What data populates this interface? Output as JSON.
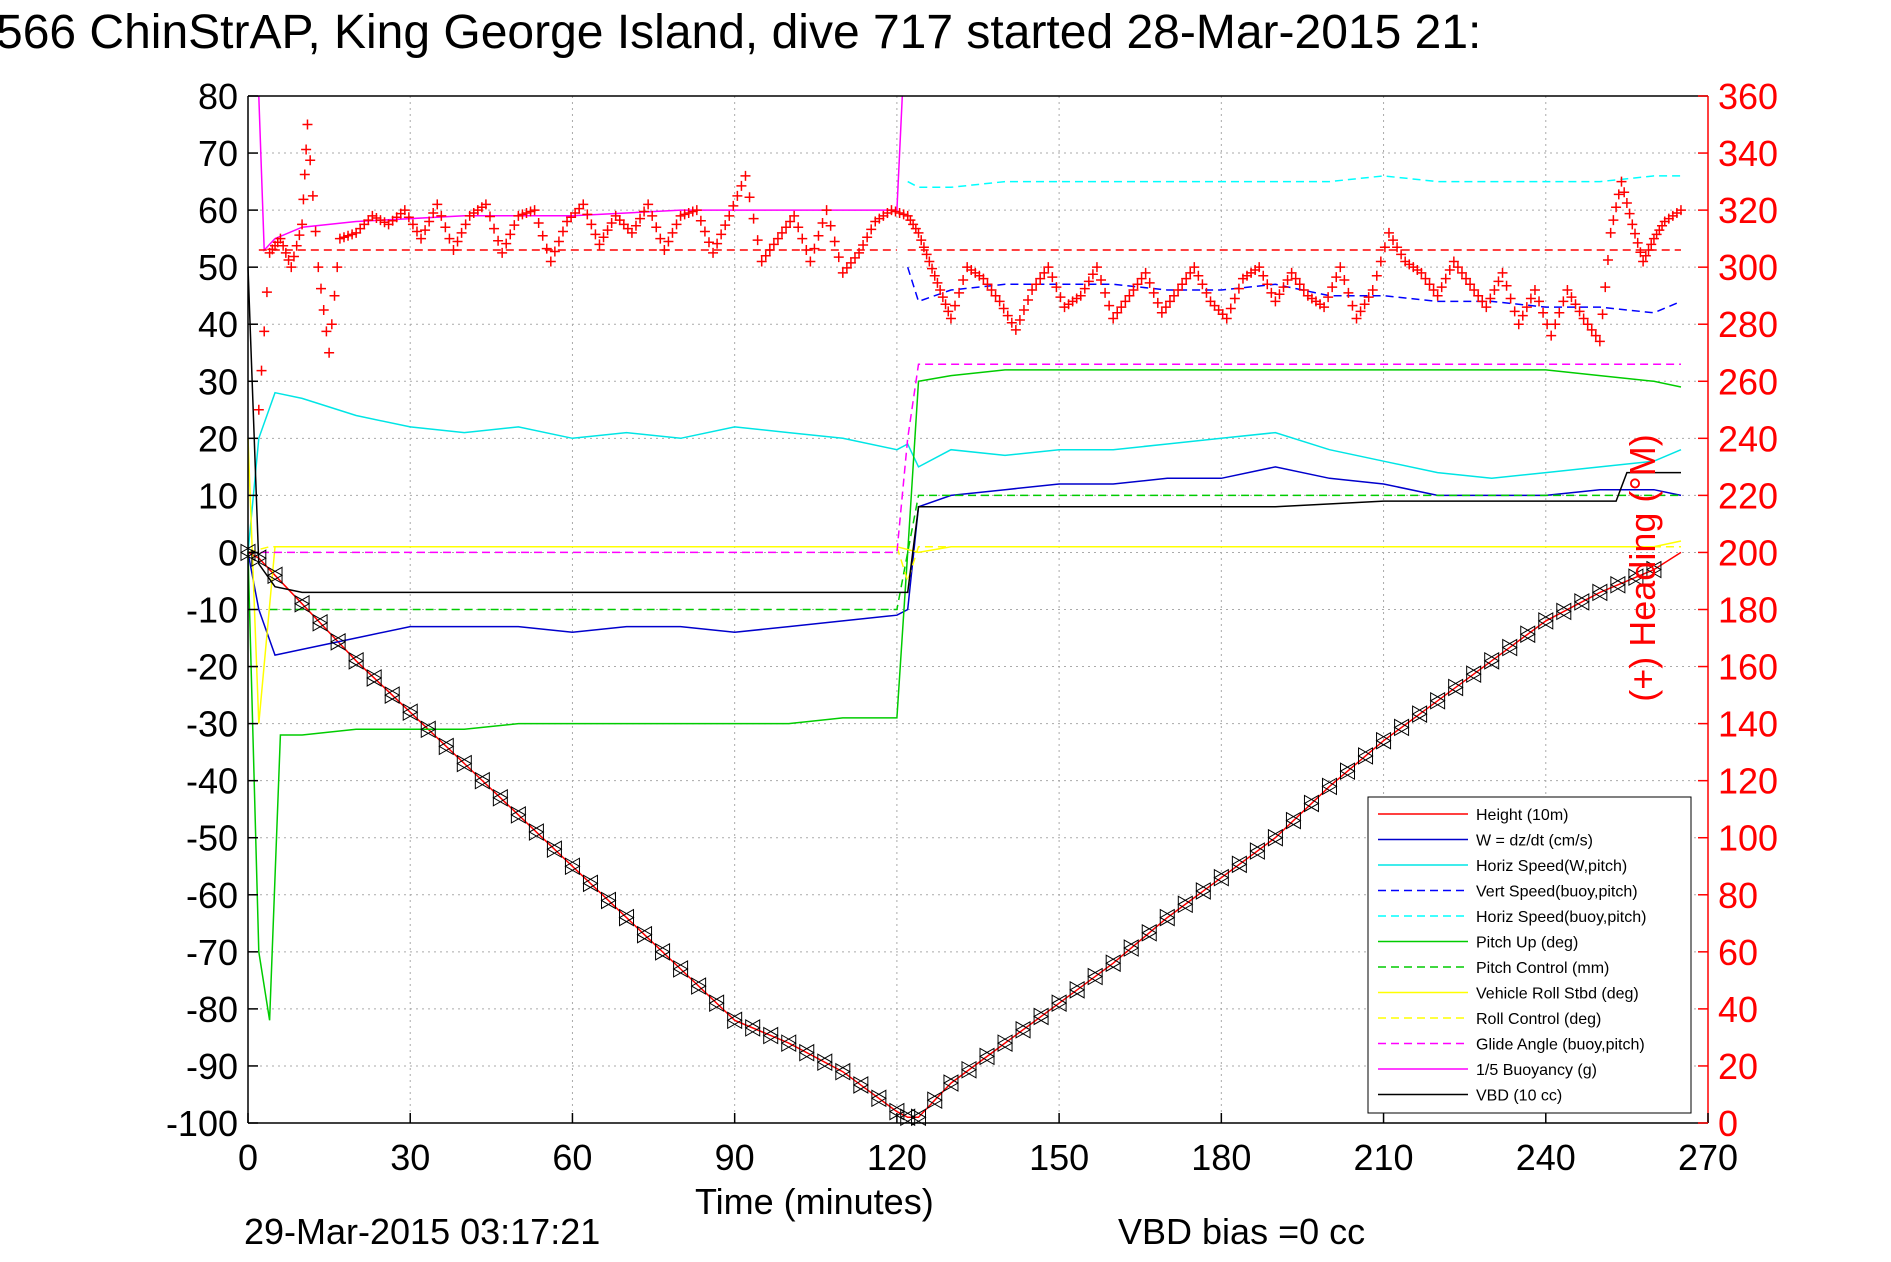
{
  "title": "566 ChinStrAP, King George Island, dive 717 started 28-Mar-2015 21:",
  "footer": {
    "timestamp": "29-Mar-2015 03:17:21",
    "vbd_bias": "VBD bias =0 cc"
  },
  "chart_data": {
    "type": "line",
    "xlabel": "Time (minutes)",
    "ylabel": "",
    "y2label": "(+) Heading (°M)",
    "xlim": [
      0,
      270
    ],
    "ylim": [
      -100,
      80
    ],
    "y2lim": [
      0,
      360
    ],
    "xticks": [
      "0",
      "30",
      "60",
      "90",
      "120",
      "150",
      "180",
      "210",
      "240",
      "270"
    ],
    "yticks": [
      "80",
      "70",
      "60",
      "50",
      "40",
      "30",
      "20",
      "10",
      "0",
      "-10",
      "-20",
      "-30",
      "-40",
      "-50",
      "-60",
      "-70",
      "-80",
      "-90",
      "-100"
    ],
    "y2ticks": [
      "360",
      "340",
      "320",
      "300",
      "280",
      "260",
      "240",
      "220",
      "200",
      "180",
      "160",
      "140",
      "120",
      "100",
      "80",
      "60",
      "40",
      "20",
      "0"
    ],
    "grid": true,
    "legend_position": "bottom-right",
    "colors": {
      "height": "#ff0000",
      "w": "#0000cc",
      "horiz_speed": "#00e5e5",
      "vert_speed_buoy": "#0000ff",
      "horiz_speed_buoy": "#00ffff",
      "pitch_up": "#00cc00",
      "pitch_control": "#00cc00",
      "roll": "#ffff00",
      "roll_control": "#ffff00",
      "glide_angle": "#ff00ff",
      "buoyancy": "#ff00ff",
      "vbd": "#000000",
      "heading": "#ff0000"
    },
    "series": [
      {
        "name": "Height (10m)",
        "style": "solid",
        "color": "#ff0000",
        "x": [
          0,
          2,
          5,
          10,
          20,
          30,
          40,
          50,
          60,
          70,
          80,
          90,
          100,
          110,
          120,
          122,
          124,
          130,
          140,
          150,
          160,
          170,
          180,
          190,
          200,
          210,
          220,
          230,
          240,
          250,
          260,
          265
        ],
        "y": [
          0,
          -1,
          -4,
          -9,
          -19,
          -28,
          -37,
          -46,
          -55,
          -64,
          -73,
          -82,
          -86,
          -91,
          -98,
          -99,
          -99,
          -93,
          -86,
          -79,
          -72,
          -64,
          -57,
          -50,
          -41,
          -33,
          -26,
          -19,
          -12,
          -7,
          -3,
          0
        ]
      },
      {
        "name": "W = dz/dt (cm/s)",
        "style": "solid",
        "color": "#0000cc",
        "x": [
          0,
          2,
          5,
          10,
          20,
          30,
          40,
          50,
          60,
          70,
          80,
          90,
          100,
          110,
          120,
          122,
          124,
          130,
          140,
          150,
          160,
          170,
          180,
          190,
          200,
          210,
          220,
          230,
          240,
          250,
          260,
          265
        ],
        "y": [
          0,
          -10,
          -18,
          -17,
          -15,
          -13,
          -13,
          -13,
          -14,
          -13,
          -13,
          -14,
          -13,
          -12,
          -11,
          -10,
          8,
          10,
          11,
          12,
          12,
          13,
          13,
          15,
          13,
          12,
          10,
          10,
          10,
          11,
          11,
          10
        ]
      },
      {
        "name": "Horiz Speed(W,pitch)",
        "style": "solid",
        "color": "#00e5e5",
        "x": [
          0,
          2,
          5,
          10,
          20,
          30,
          40,
          50,
          60,
          70,
          80,
          90,
          100,
          110,
          120,
          122,
          124,
          130,
          140,
          150,
          160,
          170,
          180,
          190,
          200,
          210,
          220,
          230,
          240,
          250,
          260,
          265
        ],
        "y": [
          0,
          20,
          28,
          27,
          24,
          22,
          21,
          22,
          20,
          21,
          20,
          22,
          21,
          20,
          18,
          19,
          15,
          18,
          17,
          18,
          18,
          19,
          20,
          21,
          18,
          16,
          14,
          13,
          14,
          15,
          16,
          18
        ]
      },
      {
        "name": "Vert Speed(buoy,pitch)",
        "style": "dashed",
        "color": "#0000ff",
        "x": [
          122,
          124,
          130,
          140,
          150,
          160,
          170,
          180,
          190,
          200,
          210,
          220,
          230,
          240,
          250,
          260,
          265
        ],
        "y": [
          50,
          44,
          46,
          47,
          47,
          47,
          46,
          46,
          47,
          45,
          45,
          44,
          44,
          43,
          43,
          42,
          44
        ]
      },
      {
        "name": "Horiz Speed(buoy,pitch)",
        "style": "dashed",
        "color": "#00ffff",
        "x": [
          122,
          124,
          130,
          140,
          150,
          160,
          170,
          180,
          190,
          200,
          210,
          220,
          230,
          240,
          250,
          260,
          265
        ],
        "y": [
          65,
          64,
          64,
          65,
          65,
          65,
          65,
          65,
          65,
          65,
          66,
          65,
          65,
          65,
          65,
          66,
          66
        ]
      },
      {
        "name": "Pitch Up (deg)",
        "style": "solid",
        "color": "#00cc00",
        "x": [
          0,
          2,
          4,
          6,
          10,
          20,
          30,
          40,
          50,
          60,
          70,
          80,
          90,
          100,
          110,
          120,
          122,
          124,
          130,
          140,
          150,
          160,
          170,
          180,
          190,
          200,
          210,
          220,
          230,
          240,
          250,
          260,
          265
        ],
        "y": [
          0,
          -70,
          -82,
          -32,
          -32,
          -31,
          -31,
          -31,
          -30,
          -30,
          -30,
          -30,
          -30,
          -30,
          -29,
          -29,
          0,
          30,
          31,
          32,
          32,
          32,
          32,
          32,
          32,
          32,
          32,
          32,
          32,
          32,
          31,
          30,
          29
        ]
      },
      {
        "name": "Pitch Control (mm)",
        "style": "dashed",
        "color": "#00cc00",
        "x": [
          4,
          120,
          122,
          124,
          260,
          265
        ],
        "y": [
          -10,
          -10,
          0,
          10,
          10,
          10
        ]
      },
      {
        "name": "Vehicle Roll Stbd (deg)",
        "style": "solid",
        "color": "#ffff00",
        "x": [
          0,
          2,
          5,
          10,
          20,
          30,
          40,
          50,
          60,
          70,
          80,
          90,
          100,
          110,
          120,
          124,
          130,
          140,
          150,
          160,
          170,
          180,
          190,
          200,
          210,
          220,
          230,
          240,
          250,
          260,
          265
        ],
        "y": [
          20,
          -30,
          1,
          1,
          1,
          1,
          1,
          1,
          1,
          1,
          1,
          1,
          1,
          1,
          1,
          0,
          1,
          1,
          1,
          1,
          1,
          1,
          1,
          1,
          1,
          1,
          1,
          1,
          1,
          1,
          2
        ]
      },
      {
        "name": "Roll Control (deg)",
        "style": "dashed",
        "color": "#ffff00",
        "x": [
          0,
          4,
          120,
          122,
          124,
          265
        ],
        "y": [
          0,
          1,
          1,
          -5,
          1,
          1
        ]
      },
      {
        "name": "Glide Angle (buoy,pitch)",
        "style": "dashed",
        "color": "#ff00ff",
        "x": [
          0,
          120,
          122,
          124,
          265
        ],
        "y": [
          0,
          0,
          20,
          33,
          33
        ]
      },
      {
        "name": "1/5 Buoyancy (g)",
        "style": "solid",
        "color": "#ff00ff",
        "x": [
          2,
          3,
          5,
          10,
          20,
          40,
          60,
          80,
          100,
          120,
          121
        ],
        "y": [
          80,
          53,
          55,
          57,
          58,
          59,
          59,
          60,
          60,
          60,
          80
        ]
      },
      {
        "name": "VBD (10 cc)",
        "style": "solid",
        "color": "#000000",
        "x": [
          0,
          2,
          5,
          10,
          20,
          40,
          60,
          80,
          100,
          120,
          122,
          124,
          130,
          150,
          170,
          190,
          210,
          230,
          250,
          253,
          255,
          265
        ],
        "y": [
          50,
          -2,
          -6,
          -7,
          -7,
          -7,
          -7,
          -7,
          -7,
          -7,
          -7,
          8,
          8,
          8,
          8,
          8,
          9,
          9,
          9,
          9,
          14,
          14
        ]
      }
    ],
    "heading_series": {
      "axis": "right",
      "marker": "+",
      "color": "#ff0000",
      "x": [
        2,
        4,
        6,
        8,
        10,
        11,
        13,
        15,
        17,
        20,
        23,
        26,
        29,
        32,
        35,
        38,
        41,
        44,
        47,
        50,
        53,
        56,
        59,
        62,
        65,
        68,
        71,
        74,
        77,
        80,
        83,
        86,
        89,
        92,
        95,
        98,
        101,
        104,
        107,
        110,
        113,
        116,
        119,
        122,
        124,
        126,
        128,
        130,
        133,
        136,
        139,
        142,
        145,
        148,
        151,
        154,
        157,
        160,
        163,
        166,
        169,
        172,
        175,
        178,
        181,
        184,
        187,
        190,
        193,
        196,
        199,
        202,
        205,
        208,
        211,
        214,
        217,
        220,
        223,
        226,
        229,
        232,
        235,
        238,
        241,
        244,
        247,
        250,
        252,
        254,
        256,
        258,
        260,
        262,
        265
      ],
      "y": [
        250,
        305,
        310,
        300,
        315,
        350,
        300,
        270,
        310,
        312,
        318,
        315,
        320,
        310,
        322,
        306,
        318,
        322,
        305,
        318,
        320,
        302,
        316,
        322,
        308,
        318,
        312,
        322,
        306,
        318,
        320,
        305,
        318,
        332,
        302,
        310,
        318,
        302,
        320,
        298,
        305,
        316,
        320,
        318,
        312,
        302,
        292,
        282,
        300,
        296,
        288,
        278,
        292,
        300,
        286,
        290,
        300,
        282,
        290,
        298,
        284,
        292,
        300,
        288,
        282,
        296,
        300,
        288,
        298,
        290,
        286,
        300,
        282,
        292,
        312,
        302,
        298,
        290,
        302,
        294,
        286,
        298,
        280,
        292,
        276,
        292,
        282,
        274,
        312,
        330,
        315,
        302,
        310,
        316,
        320
      ],
      "dashed_reference": [
        {
          "x": [
            2,
            120
          ],
          "y": 306
        },
        {
          "x": [
            122,
            265
          ],
          "y": 306
        }
      ]
    },
    "vbd_triangle_markers_on": "Height (10m)"
  }
}
